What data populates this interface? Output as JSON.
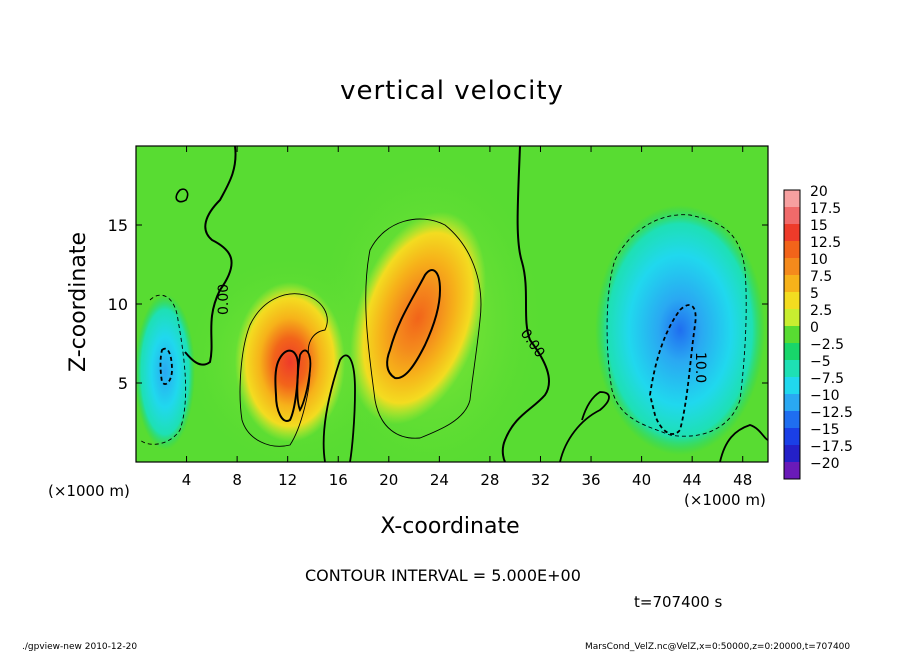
{
  "chart_data": {
    "type": "heatmap",
    "title": "vertical velocity",
    "xlabel": "X-coordinate",
    "ylabel": "Z-coordinate",
    "x_unit_label": "(×1000 m)",
    "x_ticks": [
      4,
      8,
      12,
      16,
      20,
      24,
      28,
      32,
      36,
      40,
      44,
      48
    ],
    "y_ticks": [
      5,
      10,
      15
    ],
    "xlim": [
      0,
      50
    ],
    "ylim": [
      0,
      20
    ],
    "colorbar": {
      "levels": [
        "20",
        "17.5",
        "15",
        "12.5",
        "10",
        "7.5",
        "5",
        "2.5",
        "0",
        "−2.5",
        "−5",
        "−7.5",
        "−10",
        "−12.5",
        "−15",
        "−17.5",
        "−20"
      ],
      "colors": [
        "#f7a0a0",
        "#f06a6a",
        "#ee3b2a",
        "#f2641a",
        "#f48a1c",
        "#f6b21a",
        "#f3dc20",
        "#c8ee30",
        "#58dc32",
        "#18d66a",
        "#1ee0b4",
        "#20d8ee",
        "#2aa8f2",
        "#1f6ef0",
        "#1a3fe6",
        "#2420c8",
        "#6a1ab8"
      ]
    },
    "contour_labels": [
      "0.00",
      "0.00",
      "10.0"
    ],
    "features": [
      {
        "name": "updraft",
        "x": 12.5,
        "z": 5.5,
        "max": 12.5
      },
      {
        "name": "updraft",
        "x": 22,
        "z": 10,
        "max": 12.5
      },
      {
        "name": "downdraft",
        "x": 2.5,
        "z": 6,
        "min": -10
      },
      {
        "name": "downdraft",
        "x": 43,
        "z": 7,
        "min": -12.5
      }
    ],
    "contour_interval": "CONTOUR INTERVAL = 5.000E+00",
    "time": "t=707400 s"
  },
  "footer": {
    "left": "./gpview-new  2010-12-20",
    "right": "MarsCond_VelZ.nc@VelZ,x=0:50000,z=0:20000,t=707400"
  }
}
